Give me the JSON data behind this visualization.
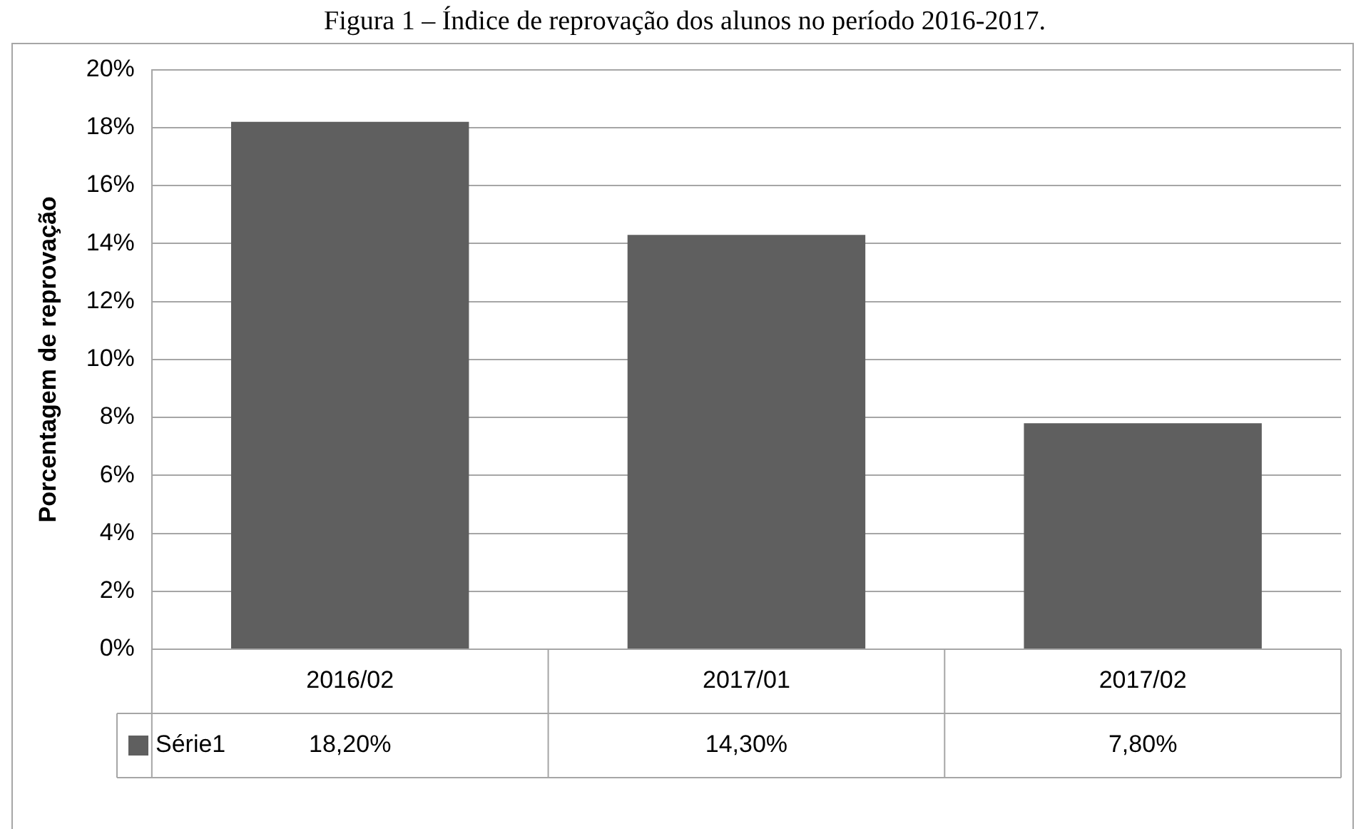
{
  "chart_data": {
    "type": "bar",
    "title": "Figura 1 – Índice de reprovação dos alunos no período 2016-2017.",
    "ylabel": "Porcentagem de reprovação",
    "categories": [
      "2016/02",
      "2017/01",
      "2017/02"
    ],
    "series": [
      {
        "name": "Série1",
        "color": "#5f5f5f",
        "values": [
          18.2,
          14.3,
          7.8
        ],
        "value_labels": [
          "18,20%",
          "14,30%",
          "7,80%"
        ]
      }
    ],
    "ylim": [
      0,
      20
    ],
    "yticks": [
      {
        "value": 0,
        "label": "0%"
      },
      {
        "value": 2,
        "label": "2%"
      },
      {
        "value": 4,
        "label": "4%"
      },
      {
        "value": 6,
        "label": "6%"
      },
      {
        "value": 8,
        "label": "8%"
      },
      {
        "value": 10,
        "label": "10%"
      },
      {
        "value": 12,
        "label": "12%"
      },
      {
        "value": 14,
        "label": "14%"
      },
      {
        "value": 16,
        "label": "16%"
      },
      {
        "value": 18,
        "label": "18%"
      },
      {
        "value": 20,
        "label": "20%"
      }
    ],
    "grid": "y",
    "legend": "bottom"
  }
}
